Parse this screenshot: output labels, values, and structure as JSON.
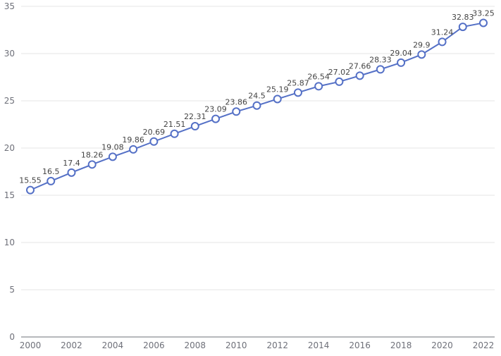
{
  "colors": {
    "series": "#5470c6",
    "grid": "#e6e6e6",
    "axis": "#6e7079",
    "label": "#444444"
  },
  "chart_data": {
    "type": "line",
    "title": "",
    "xlabel": "",
    "ylabel": "",
    "x": [
      2000,
      2001,
      2002,
      2003,
      2004,
      2005,
      2006,
      2007,
      2008,
      2009,
      2010,
      2011,
      2012,
      2013,
      2014,
      2015,
      2016,
      2017,
      2018,
      2019,
      2020,
      2021,
      2022
    ],
    "x_tick_labels": [
      "2000",
      "2002",
      "2004",
      "2006",
      "2008",
      "2010",
      "2012",
      "2014",
      "2016",
      "2018",
      "2020",
      "2022"
    ],
    "y_tick_labels": [
      "0",
      "5",
      "10",
      "15",
      "20",
      "25",
      "30",
      "35"
    ],
    "ylim": [
      0,
      35
    ],
    "grid": true,
    "legend": "none",
    "series": [
      {
        "values": [
          15.55,
          16.5,
          17.4,
          18.26,
          19.08,
          19.86,
          20.69,
          21.51,
          22.31,
          23.09,
          23.86,
          24.5,
          25.19,
          25.87,
          26.54,
          27.02,
          27.66,
          28.33,
          29.04,
          29.9,
          31.24,
          32.83,
          33.25
        ],
        "labels": [
          "15.55",
          "16.5",
          "17.4",
          "18.26",
          "19.08",
          "19.86",
          "20.69",
          "21.51",
          "22.31",
          "23.09",
          "23.86",
          "24.5",
          "25.19",
          "25.87",
          "26.54",
          "27.02",
          "27.66",
          "28.33",
          "29.04",
          "29.9",
          "31.24",
          "32.83",
          "33.25"
        ]
      }
    ]
  }
}
